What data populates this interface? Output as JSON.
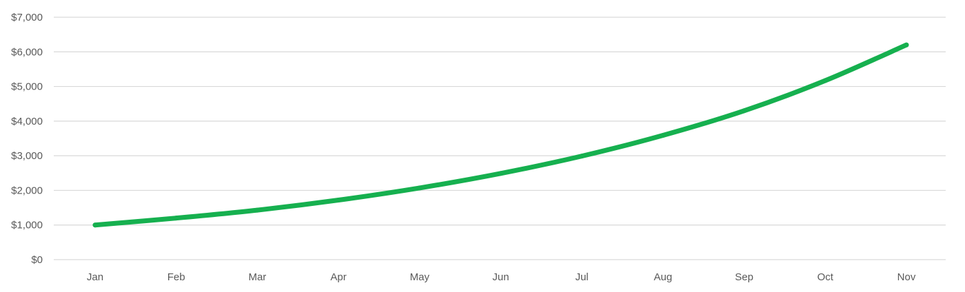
{
  "chart_data": {
    "type": "line",
    "categories": [
      "Jan",
      "Feb",
      "Mar",
      "Apr",
      "May",
      "Jun",
      "Jul",
      "Aug",
      "Sep",
      "Oct",
      "Nov"
    ],
    "series": [
      {
        "values": [
          1000,
          1200,
          1430,
          1720,
          2070,
          2490,
          2990,
          3590,
          4300,
          5170,
          6200
        ]
      }
    ],
    "y_ticks": [
      "$0",
      "$1,000",
      "$2,000",
      "$3,000",
      "$4,000",
      "$5,000",
      "$6,000",
      "$7,000"
    ],
    "ylim": [
      0,
      7000
    ],
    "title": "",
    "xlabel": "",
    "ylabel": "",
    "grid": true,
    "legend": "none",
    "colors": {
      "line": "#16b04f",
      "grid": "#d9d9d9",
      "text": "#595959"
    }
  }
}
